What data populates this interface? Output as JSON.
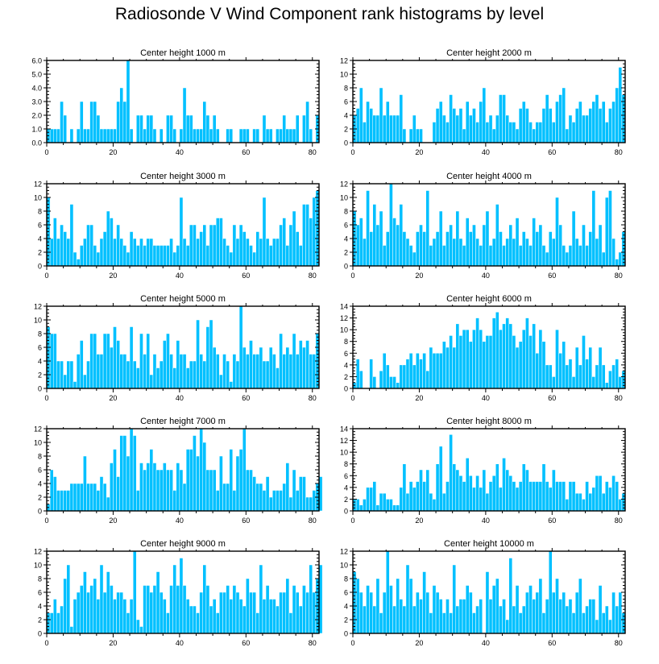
{
  "title": "Radiosonde V Wind Component rank histograms by level",
  "colors": {
    "bar": "#00c0ff",
    "bar_edge": "#ffffff",
    "axis": "#000000"
  },
  "chart_data": [
    {
      "type": "bar",
      "title": "Center height 1000 m",
      "ylim": [
        0,
        6
      ],
      "yticks": [
        "0.0",
        "1.0",
        "2.0",
        "3.0",
        "4.0",
        "5.0",
        "6.0"
      ],
      "xlim": [
        0,
        82
      ],
      "xticks": [
        0,
        20,
        40,
        60,
        80
      ],
      "values": [
        1,
        1,
        1,
        1,
        3,
        2,
        0,
        1,
        0,
        1,
        3,
        1,
        1,
        3,
        3,
        2,
        1,
        1,
        1,
        1,
        1,
        3,
        4,
        3,
        6,
        1,
        0,
        2,
        2,
        1,
        2,
        2,
        1,
        0,
        1,
        0,
        2,
        2,
        1,
        0,
        1,
        4,
        2,
        2,
        1,
        1,
        1,
        3,
        2,
        1,
        2,
        1,
        0,
        0,
        1,
        1,
        0,
        0,
        1,
        1,
        1,
        0,
        1,
        1,
        0,
        2,
        1,
        1,
        0,
        1,
        1,
        2,
        1,
        1,
        1,
        2,
        0,
        2,
        3,
        1,
        0,
        2
      ]
    },
    {
      "type": "bar",
      "title": "Center height 2000 m",
      "ylim": [
        0,
        12
      ],
      "yticks": [
        "0",
        "2",
        "4",
        "6",
        "8",
        "10",
        "12"
      ],
      "xlim": [
        0,
        82
      ],
      "xticks": [
        0,
        20,
        40,
        60,
        80
      ],
      "values": [
        4,
        5,
        8,
        3,
        6,
        5,
        4,
        4,
        8,
        4,
        6,
        4,
        4,
        4,
        7,
        2,
        0,
        2,
        4,
        2,
        2,
        0,
        0,
        0,
        3,
        5,
        6,
        4,
        3,
        7,
        5,
        4,
        5,
        2,
        6,
        4,
        5,
        3,
        6,
        8,
        3,
        4,
        2,
        4,
        7,
        7,
        4,
        3,
        3,
        2,
        5,
        6,
        5,
        3,
        2,
        3,
        3,
        5,
        7,
        5,
        3,
        6,
        7,
        8,
        2,
        4,
        3,
        5,
        6,
        4,
        4,
        5,
        6,
        7,
        5,
        6,
        3,
        5,
        6,
        8,
        11,
        7
      ]
    },
    {
      "type": "bar",
      "title": "Center height 3000 m",
      "ylim": [
        0,
        12
      ],
      "yticks": [
        "0",
        "2",
        "4",
        "6",
        "8",
        "10",
        "12"
      ],
      "xlim": [
        0,
        82
      ],
      "xticks": [
        0,
        20,
        40,
        60,
        80
      ],
      "values": [
        10,
        4,
        7,
        4,
        6,
        5,
        4,
        9,
        2,
        1,
        3,
        4,
        6,
        6,
        3,
        2,
        4,
        5,
        8,
        7,
        4,
        6,
        4,
        3,
        2,
        5,
        4,
        3,
        4,
        3,
        4,
        4,
        3,
        3,
        3,
        3,
        3,
        4,
        2,
        3,
        10,
        4,
        3,
        6,
        6,
        4,
        5,
        6,
        3,
        6,
        6,
        7,
        7,
        4,
        3,
        2,
        6,
        4,
        6,
        5,
        4,
        3,
        2,
        5,
        4,
        10,
        4,
        3,
        4,
        4,
        6,
        7,
        3,
        6,
        8,
        5,
        3,
        9,
        9,
        7,
        10,
        11
      ]
    },
    {
      "type": "bar",
      "title": "Center height 4000 m",
      "ylim": [
        0,
        12
      ],
      "yticks": [
        "0",
        "2",
        "4",
        "6",
        "8",
        "10",
        "12"
      ],
      "xlim": [
        0,
        82
      ],
      "xticks": [
        0,
        20,
        40,
        60,
        80
      ],
      "values": [
        8,
        6,
        7,
        4,
        11,
        5,
        9,
        6,
        8,
        3,
        5,
        12,
        7,
        6,
        9,
        5,
        4,
        3,
        2,
        5,
        6,
        5,
        11,
        3,
        4,
        5,
        8,
        3,
        5,
        6,
        4,
        8,
        4,
        3,
        7,
        5,
        6,
        4,
        3,
        6,
        8,
        3,
        4,
        9,
        5,
        3,
        4,
        6,
        4,
        7,
        3,
        5,
        4,
        3,
        7,
        5,
        6,
        3,
        2,
        5,
        4,
        10,
        6,
        3,
        2,
        3,
        8,
        4,
        3,
        6,
        3,
        5,
        11,
        4,
        6,
        2,
        10,
        11,
        4,
        1,
        2,
        5
      ]
    },
    {
      "type": "bar",
      "title": "Center height 5000 m",
      "ylim": [
        0,
        12
      ],
      "yticks": [
        "0",
        "2",
        "4",
        "6",
        "8",
        "10",
        "12"
      ],
      "xlim": [
        0,
        82
      ],
      "xticks": [
        0,
        20,
        40,
        60,
        80
      ],
      "values": [
        9,
        8,
        8,
        4,
        4,
        2,
        4,
        4,
        1,
        5,
        7,
        2,
        4,
        8,
        8,
        5,
        5,
        8,
        8,
        6,
        9,
        7,
        5,
        5,
        4,
        9,
        4,
        3,
        8,
        5,
        8,
        2,
        5,
        3,
        4,
        7,
        8,
        5,
        3,
        7,
        5,
        5,
        3,
        4,
        4,
        10,
        5,
        4,
        9,
        10,
        6,
        5,
        2,
        5,
        4,
        1,
        5,
        4,
        12,
        6,
        5,
        7,
        5,
        5,
        6,
        4,
        4,
        6,
        5,
        3,
        8,
        5,
        6,
        5,
        8,
        5,
        7,
        6,
        7,
        5,
        5,
        8
      ]
    },
    {
      "type": "bar",
      "title": "Center height 6000 m",
      "ylim": [
        0,
        14
      ],
      "yticks": [
        "0",
        "2",
        "4",
        "6",
        "8",
        "10",
        "12",
        "14"
      ],
      "xlim": [
        0,
        82
      ],
      "xticks": [
        0,
        20,
        40,
        60,
        80
      ],
      "values": [
        1,
        5,
        3,
        0,
        0,
        5,
        2,
        0,
        3,
        6,
        4,
        2,
        2,
        1,
        4,
        4,
        5,
        6,
        4,
        6,
        5,
        6,
        3,
        7,
        6,
        6,
        6,
        8,
        7,
        9,
        7,
        11,
        9,
        10,
        10,
        8,
        10,
        12,
        10,
        8,
        9,
        9,
        12,
        13,
        10,
        11,
        12,
        11,
        9,
        7,
        8,
        10,
        12,
        9,
        11,
        6,
        10,
        8,
        4,
        4,
        2,
        10,
        6,
        8,
        4,
        5,
        2,
        7,
        4,
        9,
        5,
        7,
        2,
        4,
        7,
        4,
        1,
        3,
        4,
        5,
        2,
        3
      ]
    },
    {
      "type": "bar",
      "title": "Center height 7000 m",
      "ylim": [
        0,
        12
      ],
      "yticks": [
        "0",
        "2",
        "4",
        "6",
        "8",
        "10",
        "12"
      ],
      "xlim": [
        0,
        82
      ],
      "xticks": [
        0,
        20,
        40,
        60,
        80
      ],
      "values": [
        1,
        6,
        5,
        3,
        3,
        3,
        3,
        4,
        4,
        4,
        4,
        8,
        4,
        4,
        4,
        3,
        5,
        4,
        2,
        7,
        9,
        5,
        11,
        11,
        8,
        12,
        11,
        3,
        7,
        6,
        7,
        9,
        7,
        6,
        6,
        7,
        6,
        6,
        3,
        7,
        6,
        4,
        9,
        9,
        11,
        8,
        12,
        10,
        6,
        6,
        6,
        3,
        8,
        4,
        4,
        9,
        3,
        8,
        9,
        12,
        6,
        6,
        5,
        4,
        4,
        3,
        5,
        2,
        3,
        3,
        3,
        4,
        7,
        2,
        6,
        3,
        5,
        5,
        2,
        2,
        3,
        4,
        5
      ]
    },
    {
      "type": "bar",
      "title": "Center height 8000 m",
      "ylim": [
        0,
        14
      ],
      "yticks": [
        "0",
        "2",
        "4",
        "6",
        "8",
        "10",
        "12",
        "14"
      ],
      "xlim": [
        0,
        82
      ],
      "xticks": [
        0,
        20,
        40,
        60,
        80
      ],
      "values": [
        2,
        2,
        1,
        2,
        4,
        4,
        5,
        1,
        3,
        3,
        2,
        2,
        1,
        1,
        4,
        8,
        3,
        5,
        4,
        5,
        7,
        5,
        7,
        3,
        2,
        8,
        11,
        3,
        5,
        13,
        8,
        7,
        6,
        5,
        9,
        6,
        4,
        6,
        4,
        7,
        3,
        5,
        6,
        8,
        4,
        9,
        7,
        6,
        5,
        4,
        5,
        8,
        7,
        5,
        5,
        5,
        5,
        8,
        5,
        4,
        7,
        5,
        5,
        5,
        2,
        5,
        5,
        3,
        3,
        2,
        5,
        3,
        4,
        6,
        6,
        3,
        5,
        4,
        6,
        5,
        2,
        3
      ]
    },
    {
      "type": "bar",
      "title": "Center height 9000 m",
      "ylim": [
        0,
        12
      ],
      "yticks": [
        "0",
        "2",
        "4",
        "6",
        "8",
        "10",
        "12"
      ],
      "xlim": [
        0,
        82
      ],
      "xticks": [
        0,
        20,
        40,
        60,
        80
      ],
      "values": [
        3,
        3,
        5,
        3,
        4,
        8,
        10,
        1,
        5,
        6,
        7,
        9,
        6,
        7,
        8,
        5,
        10,
        6,
        9,
        7,
        5,
        6,
        6,
        5,
        3,
        5,
        12,
        2,
        1,
        7,
        7,
        6,
        7,
        9,
        6,
        5,
        3,
        7,
        10,
        7,
        11,
        7,
        5,
        4,
        4,
        3,
        6,
        10,
        7,
        4,
        5,
        3,
        6,
        6,
        7,
        5,
        7,
        6,
        5,
        4,
        8,
        6,
        6,
        3,
        10,
        5,
        7,
        5,
        5,
        4,
        6,
        6,
        8,
        3,
        7,
        6,
        4,
        7,
        6,
        10,
        6,
        8,
        10
      ]
    },
    {
      "type": "bar",
      "title": "Center height 10000 m",
      "ylim": [
        0,
        12
      ],
      "yticks": [
        "0",
        "2",
        "4",
        "6",
        "8",
        "10",
        "12"
      ],
      "xlim": [
        0,
        82
      ],
      "xticks": [
        0,
        20,
        40,
        60,
        80
      ],
      "values": [
        9,
        8,
        6,
        4,
        7,
        6,
        4,
        8,
        3,
        6,
        12,
        7,
        4,
        8,
        5,
        4,
        10,
        8,
        4,
        6,
        5,
        9,
        6,
        3,
        7,
        6,
        5,
        3,
        5,
        3,
        10,
        4,
        5,
        5,
        7,
        6,
        3,
        4,
        5,
        0,
        9,
        5,
        7,
        8,
        4,
        5,
        2,
        11,
        4,
        7,
        3,
        4,
        6,
        7,
        5,
        6,
        8,
        3,
        5,
        12,
        6,
        8,
        5,
        6,
        4,
        5,
        3,
        6,
        8,
        3,
        4,
        5,
        5,
        2,
        7,
        3,
        4,
        2,
        6,
        4,
        6,
        3
      ]
    }
  ]
}
